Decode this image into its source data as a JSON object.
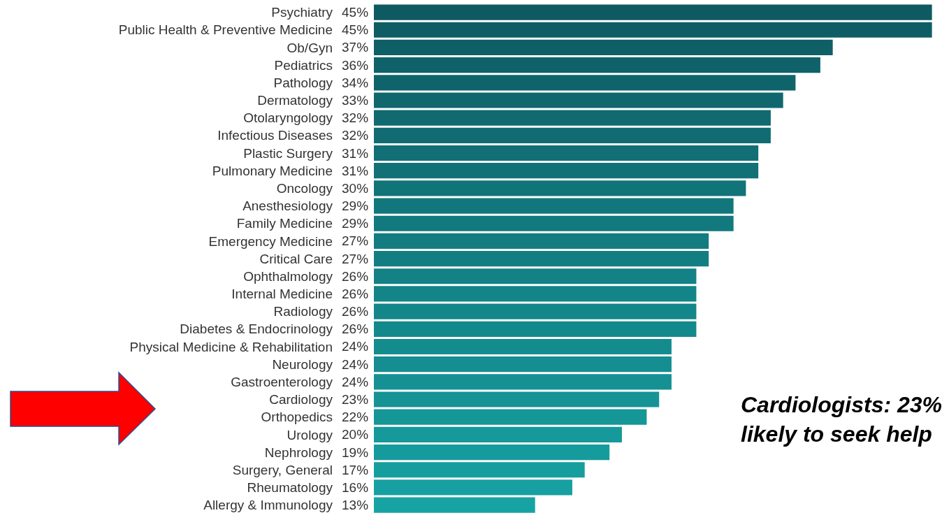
{
  "chart_data": {
    "type": "bar",
    "orientation": "horizontal",
    "categories": [
      "Psychiatry",
      "Public Health & Preventive Medicine",
      "Ob/Gyn",
      "Pediatrics",
      "Pathology",
      "Dermatology",
      "Otolaryngology",
      "Infectious Diseases",
      "Plastic Surgery",
      "Pulmonary Medicine",
      "Oncology",
      "Anesthesiology",
      "Family Medicine",
      "Emergency Medicine",
      "Critical Care",
      "Ophthalmology",
      "Internal Medicine",
      "Radiology",
      "Diabetes & Endocrinology",
      "Physical Medicine & Rehabilitation",
      "Neurology",
      "Gastroenterology",
      "Cardiology",
      "Orthopedics",
      "Urology",
      "Nephrology",
      "Surgery, General",
      "Rheumatology",
      "Allergy & Immunology"
    ],
    "values": [
      45,
      45,
      37,
      36,
      34,
      33,
      32,
      32,
      31,
      31,
      30,
      29,
      29,
      27,
      27,
      26,
      26,
      26,
      26,
      24,
      24,
      24,
      23,
      22,
      20,
      19,
      17,
      16,
      13
    ],
    "value_labels": [
      "45%",
      "45%",
      "37%",
      "36%",
      "34%",
      "33%",
      "32%",
      "32%",
      "31%",
      "31%",
      "30%",
      "29%",
      "29%",
      "27%",
      "27%",
      "26%",
      "26%",
      "26%",
      "26%",
      "24%",
      "24%",
      "24%",
      "23%",
      "22%",
      "20%",
      "19%",
      "17%",
      "16%",
      "13%"
    ],
    "colors": [
      "#0e5a62",
      "#0e5d64",
      "#0f5f67",
      "#0f6269",
      "#0f646b",
      "#10676e",
      "#106a70",
      "#106c72",
      "#116f75",
      "#117177",
      "#117479",
      "#12777c",
      "#12797e",
      "#127c80",
      "#127e82",
      "#138185",
      "#138487",
      "#138689",
      "#14898c",
      "#148c8e",
      "#148e90",
      "#159193",
      "#159395",
      "#159697",
      "#16999a",
      "#169b9c",
      "#169e9e",
      "#17a0a1",
      "#17a3a3"
    ],
    "tick_labels": "y",
    "legend": false,
    "annotations": [
      "Cardiologists: 23%\nlikely to seek help"
    ]
  }
}
